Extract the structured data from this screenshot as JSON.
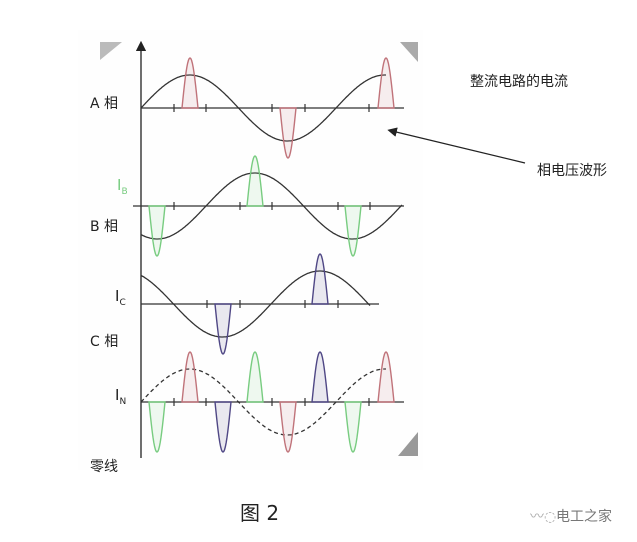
{
  "labels": {
    "phase_a": "A 相",
    "phase_b": "B 相",
    "phase_c": "C 相",
    "neutral": "零线",
    "current_b": {
      "main": "I",
      "sub": "B"
    },
    "current_c": {
      "main": "I",
      "sub": "C"
    },
    "current_n": {
      "main": "I",
      "sub": "N"
    }
  },
  "annotations": {
    "rectifier_current": "整流电路的电流",
    "phase_voltage_waveform": "相电压波形"
  },
  "caption": "图 2",
  "watermark": {
    "text": "电工之家",
    "icon": "wechat-bird-icon"
  },
  "colors": {
    "voltage": "#333333",
    "phase_a_current": "#c0737a",
    "phase_b_current": "#78cc80",
    "phase_c_current": "#4f4785"
  }
}
